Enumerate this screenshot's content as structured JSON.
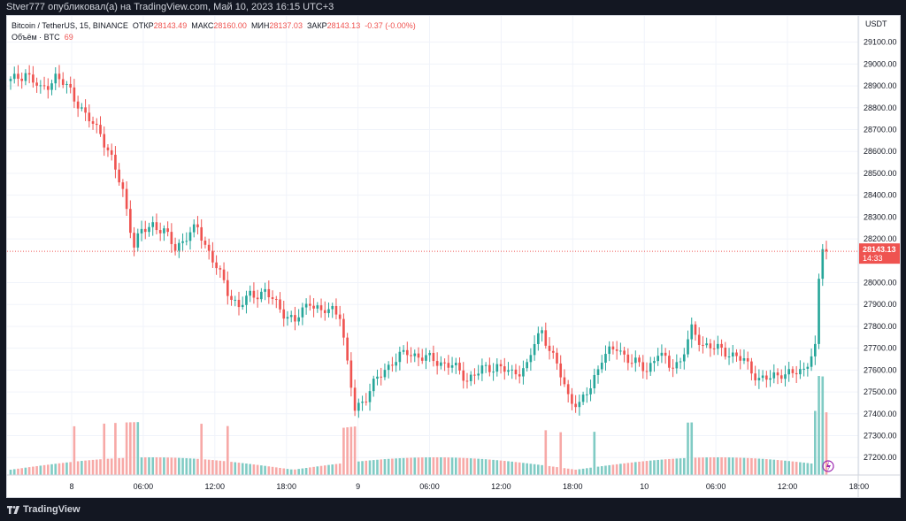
{
  "header": {
    "published": "Stver777 опубликовал(а) на TradingView.com, Май 10, 2023 16:15 UTC+3"
  },
  "legend": {
    "symbol": "Bitcoin / TetherUS, 15, BINANCE",
    "open_label": "ОТКР",
    "open": "28143.49",
    "high_label": "МАКС",
    "high": "28160.00",
    "low_label": "МИН",
    "low": "28137.03",
    "close_label": "ЗАКР",
    "close": "28143.13",
    "change": "-0.37 (-0.00%)",
    "volume_label": "Объём · BTC",
    "volume": "69"
  },
  "price_axis": {
    "currency": "USDT",
    "ticks": [
      "29100.00",
      "29000.00",
      "28900.00",
      "28800.00",
      "28700.00",
      "28600.00",
      "28500.00",
      "28400.00",
      "28300.00",
      "28200.00",
      "28000.00",
      "27900.00",
      "27800.00",
      "27700.00",
      "27600.00",
      "27500.00",
      "27400.00",
      "27300.00",
      "27200.00"
    ],
    "last_price": "28143.13",
    "countdown": "14:33"
  },
  "time_axis": {
    "ticks": [
      "8",
      "06:00",
      "12:00",
      "18:00",
      "9",
      "06:00",
      "12:00",
      "18:00",
      "10",
      "06:00",
      "12:00",
      "18:00"
    ]
  },
  "colors": {
    "up": "#26a69a",
    "down": "#ef5350",
    "up_volume": "#80cbc4",
    "down_volume": "#f7a9a7",
    "background": "#ffffff",
    "frame": "#131722"
  },
  "footer": {
    "brand": "TradingView"
  },
  "chart_data": {
    "type": "candlestick",
    "title": "Bitcoin / TetherUS, 15, BINANCE",
    "interval": "15m",
    "ylim": [
      27120,
      29220
    ],
    "y_unit": "USDT",
    "grid": true,
    "x_ticks": [
      "8",
      "06:00",
      "12:00",
      "18:00",
      "9",
      "06:00",
      "12:00",
      "18:00",
      "10",
      "06:00",
      "12:00",
      "18:00"
    ],
    "close_path": [
      [
        0,
        28920
      ],
      [
        4,
        28960
      ],
      [
        8,
        28880
      ],
      [
        12,
        28940
      ],
      [
        16,
        28880
      ],
      [
        20,
        28760
      ],
      [
        24,
        28690
      ],
      [
        27,
        28560
      ],
      [
        30,
        28420
      ],
      [
        33,
        28170
      ],
      [
        35,
        28230
      ],
      [
        38,
        28270
      ],
      [
        41,
        28230
      ],
      [
        44,
        28160
      ],
      [
        47,
        28210
      ],
      [
        50,
        28250
      ],
      [
        53,
        28140
      ],
      [
        55,
        28070
      ],
      [
        58,
        27960
      ],
      [
        61,
        27890
      ],
      [
        64,
        27940
      ],
      [
        68,
        27960
      ],
      [
        72,
        27880
      ],
      [
        76,
        27820
      ],
      [
        80,
        27920
      ],
      [
        83,
        27860
      ],
      [
        86,
        27880
      ],
      [
        88,
        27860
      ],
      [
        90,
        27620
      ],
      [
        92,
        27420
      ],
      [
        95,
        27480
      ],
      [
        98,
        27560
      ],
      [
        102,
        27640
      ],
      [
        106,
        27680
      ],
      [
        110,
        27660
      ],
      [
        114,
        27640
      ],
      [
        118,
        27620
      ],
      [
        122,
        27560
      ],
      [
        126,
        27600
      ],
      [
        130,
        27620
      ],
      [
        134,
        27580
      ],
      [
        138,
        27620
      ],
      [
        140,
        27720
      ],
      [
        142,
        27780
      ],
      [
        146,
        27620
      ],
      [
        149,
        27480
      ],
      [
        152,
        27440
      ],
      [
        155,
        27520
      ],
      [
        158,
        27660
      ],
      [
        162,
        27700
      ],
      [
        166,
        27640
      ],
      [
        170,
        27600
      ],
      [
        173,
        27680
      ],
      [
        176,
        27620
      ],
      [
        179,
        27640
      ],
      [
        182,
        27780
      ],
      [
        185,
        27720
      ],
      [
        188,
        27700
      ],
      [
        192,
        27680
      ],
      [
        196,
        27640
      ],
      [
        200,
        27560
      ],
      [
        203,
        27560
      ],
      [
        206,
        27590
      ],
      [
        209,
        27580
      ],
      [
        212,
        27600
      ],
      [
        214,
        27680
      ],
      [
        215,
        27700
      ],
      [
        216,
        28000
      ],
      [
        217,
        28160
      ],
      [
        218,
        28143
      ]
    ],
    "volume": {
      "label": "Объём · BTC",
      "last": 69
    }
  }
}
